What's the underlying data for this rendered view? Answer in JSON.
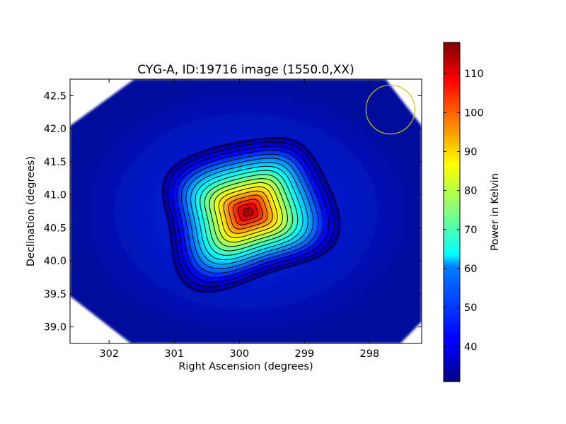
{
  "chart_data": {
    "type": "heatmap",
    "title": "CYG-A, ID:19716 image (1550.0,XX)",
    "xlabel": "Right Ascension (degrees)",
    "ylabel": "Declination (degrees)",
    "x_axis_reversed": true,
    "xlim": [
      302.6,
      297.2
    ],
    "ylim": [
      38.75,
      42.75
    ],
    "x_ticks": [
      302,
      301,
      300,
      299,
      298
    ],
    "x_tick_labels": [
      "302",
      "301",
      "300",
      "299",
      "298"
    ],
    "y_ticks": [
      39.0,
      39.5,
      40.0,
      40.5,
      41.0,
      41.5,
      42.0,
      42.5
    ],
    "y_tick_labels": [
      "39.0",
      "39.5",
      "40.0",
      "40.5",
      "41.0",
      "41.5",
      "42.0",
      "42.5"
    ],
    "colorbar": {
      "label": "Power in Kelvin",
      "range": [
        31,
        118
      ],
      "ticks": [
        40,
        50,
        60,
        70,
        80,
        90,
        100,
        110
      ],
      "tick_labels": [
        "40",
        "50",
        "60",
        "70",
        "80",
        "90",
        "100",
        "110"
      ],
      "colormap": "jet"
    },
    "source_peak": {
      "ra": 299.87,
      "dec": 40.74,
      "power_kelvin": 118
    },
    "background_power_kelvin": 33,
    "contour_count": 18,
    "beam_circle": {
      "ra": 297.68,
      "dec": 42.29,
      "radius_deg": 0.37,
      "color": "#c8c800"
    },
    "grid": false,
    "legend": "none"
  }
}
